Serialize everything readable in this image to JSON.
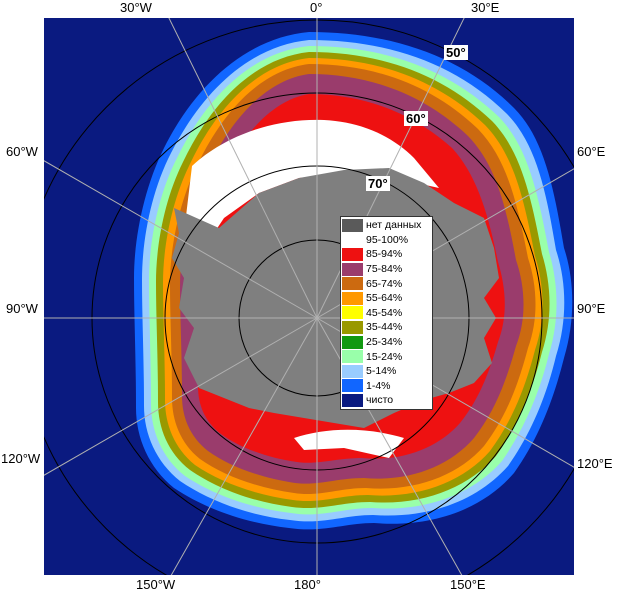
{
  "colors": {
    "ocean": "#0a1a80",
    "land": "#7f7f7f",
    "grid": "#b0b0b0",
    "circles": "#000000"
  },
  "lon_labels": {
    "top_left": "30°W",
    "top_center": "0°",
    "top_right": "30°E",
    "left_upper": "60°W",
    "right_upper": "60°E",
    "left_middle": "90°W",
    "right_middle": "90°E",
    "left_lower": "120°W",
    "right_lower": "120°E",
    "bottom_left": "150°W",
    "bottom_center": "180°",
    "bottom_right": "150°E"
  },
  "lat_labels": {
    "lat50": "50°",
    "lat60": "60°",
    "lat70": "70°"
  },
  "legend": {
    "items": [
      {
        "label": "нет данных",
        "color": "#5a5a5a"
      },
      {
        "label": "95-100%",
        "color": "#ffffff"
      },
      {
        "label": "85-94%",
        "color": "#ee1111"
      },
      {
        "label": "75-84%",
        "color": "#9a3c6c"
      },
      {
        "label": "65-74%",
        "color": "#cc6a10"
      },
      {
        "label": "55-64%",
        "color": "#ff9900"
      },
      {
        "label": "45-54%",
        "color": "#ffff00"
      },
      {
        "label": "35-44%",
        "color": "#999900"
      },
      {
        "label": "25-34%",
        "color": "#119911"
      },
      {
        "label": "15-24%",
        "color": "#99ffaa"
      },
      {
        "label": "5-14%",
        "color": "#99ccff"
      },
      {
        "label": "1-4%",
        "color": "#1166ff"
      },
      {
        "label": "чисто",
        "color": "#0a1a80"
      }
    ]
  }
}
